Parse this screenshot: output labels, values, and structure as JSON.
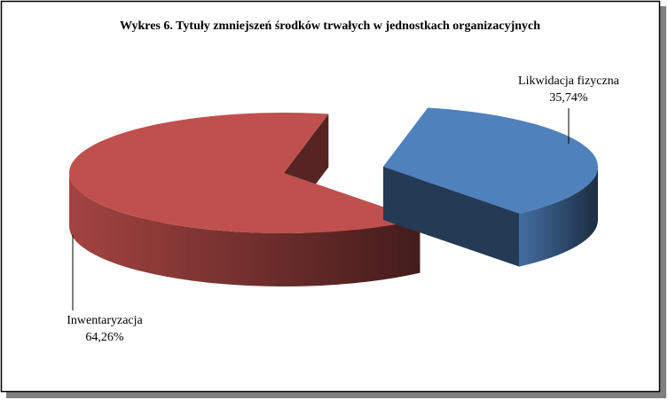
{
  "chart_data": {
    "type": "pie3d",
    "title": "Wykres 6. Tytuły zmniejszeń środków trwałych w jednostkach organizacyjnych",
    "categories": [
      "Likwidacja fizyczna",
      "Inwentaryzacja"
    ],
    "values": [
      35.74,
      64.26
    ],
    "value_labels": [
      "35,74%",
      "64,26%"
    ],
    "colors": [
      "#4f81bd",
      "#c0504d"
    ]
  }
}
